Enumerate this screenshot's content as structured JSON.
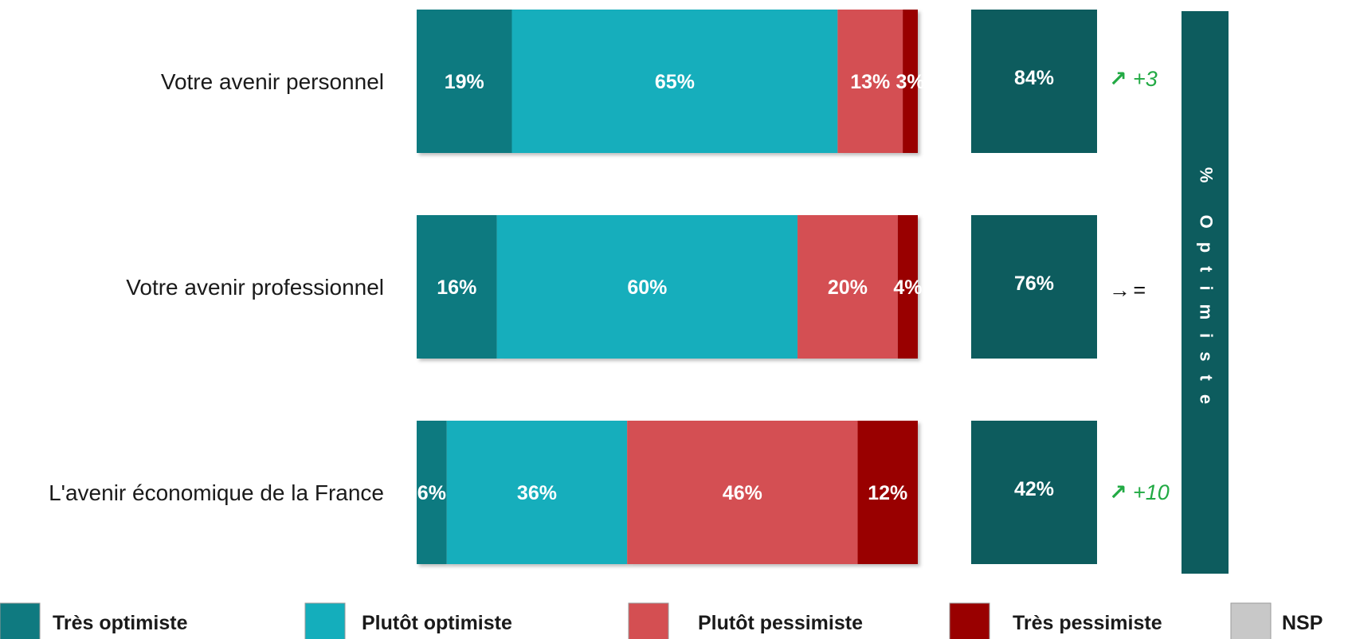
{
  "chart_data": {
    "type": "bar",
    "orientation": "horizontal",
    "stacked": true,
    "categories": [
      "Votre avenir personnel",
      "Votre avenir professionnel",
      "L'avenir économique de la France"
    ],
    "series": [
      {
        "name": "Très optimiste",
        "color": "#0f7a80",
        "values": [
          19,
          16,
          6
        ],
        "labels": [
          "19%",
          "16%",
          "6%"
        ]
      },
      {
        "name": "Plutôt optimiste",
        "color": "#14aebc",
        "values": [
          65,
          60,
          36
        ],
        "labels": [
          "65%",
          "60%",
          "36%"
        ]
      },
      {
        "name": "Plutôt pessimiste",
        "color": "#d44f52",
        "values": [
          13,
          20,
          46
        ],
        "labels": [
          "13%",
          "20%",
          "46%"
        ]
      },
      {
        "name": "Très pessimiste",
        "color": "#990000",
        "values": [
          3,
          4,
          12
        ],
        "labels": [
          "3%",
          "4%",
          "12%"
        ]
      },
      {
        "name": "NSP",
        "color": "#c8c8c8",
        "values": [
          0,
          0,
          0
        ],
        "labels": [
          "",
          "",
          ""
        ]
      }
    ],
    "xlim": [
      0,
      100
    ],
    "totals": {
      "label": "% Optimiste",
      "color": "#0d5c5e",
      "values": [
        84,
        76,
        42
      ],
      "labels": [
        "84%",
        "76%",
        "42%"
      ]
    },
    "trends": [
      {
        "arrow": "↗",
        "text": "+3",
        "color": "#22aa44"
      },
      {
        "arrow": "→",
        "text": "=",
        "color": "#111111"
      },
      {
        "arrow": "↗",
        "text": "+10",
        "color": "#22aa44"
      }
    ],
    "legend": {
      "position": "bottom"
    }
  }
}
